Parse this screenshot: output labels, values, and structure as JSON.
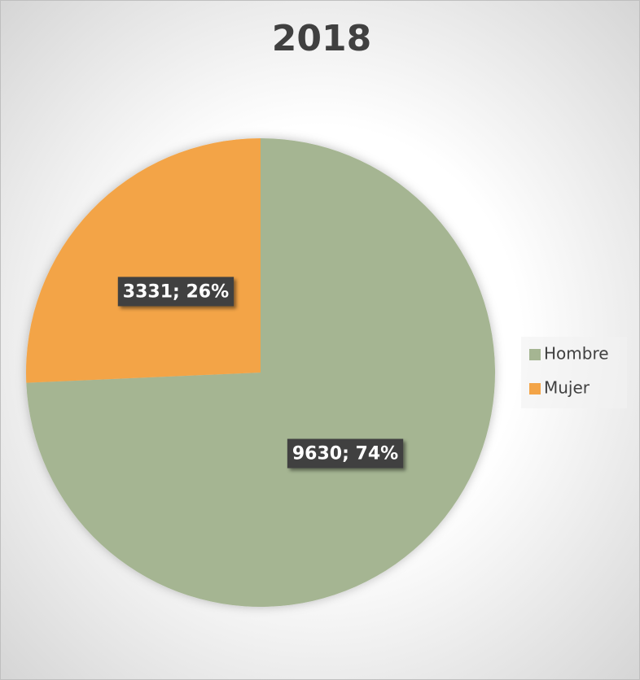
{
  "chart_data": {
    "type": "pie",
    "title": "2018",
    "categories": [
      "Hombre",
      "Mujer"
    ],
    "values": [
      9630,
      3331
    ],
    "value_labels": [
      "9630; 74%",
      "3331; 26%"
    ],
    "colors": [
      "#a5b592",
      "#f3a447"
    ],
    "legend": "right"
  }
}
